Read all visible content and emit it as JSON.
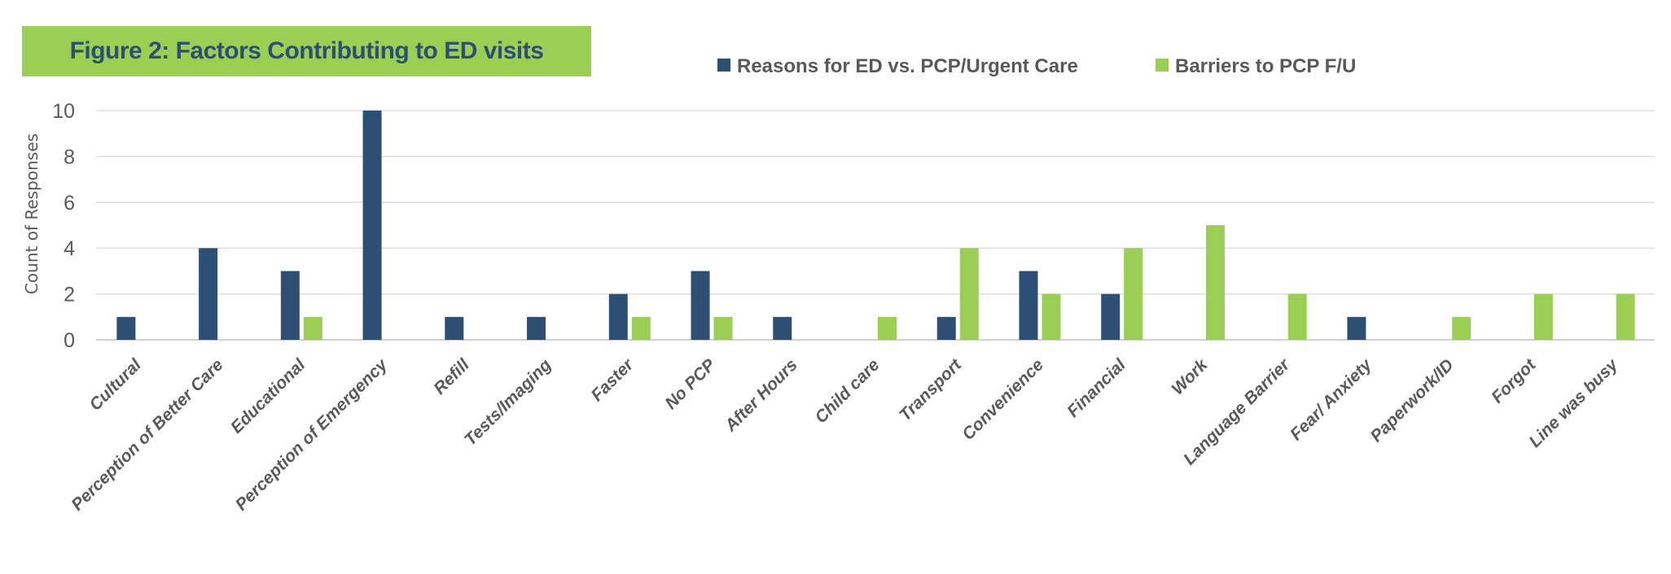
{
  "chart_data": {
    "type": "bar",
    "title": "Figure 2: Factors Contributing to ED visits",
    "xlabel": "",
    "ylabel": "Count of Responses",
    "ylim": [
      0,
      10
    ],
    "yticks": [
      "0",
      "2",
      "4",
      "6",
      "8",
      "10"
    ],
    "grid": true,
    "legend_position": "top",
    "categories": [
      "Cultural",
      "Perception of Better Care",
      "Educational",
      "Perception of Emergency",
      "Refill",
      "Tests/Imaging",
      "Faster",
      "No PCP",
      "After Hours",
      "Child care",
      "Transport",
      "Convenience",
      "Financial",
      "Work",
      "Language Barrier",
      "Fear/ Anxiety",
      "Paperwork/ID",
      "Forgot",
      "Line was busy"
    ],
    "series": [
      {
        "name": "Reasons for ED vs. PCP/Urgent Care",
        "color": "#2E4F74",
        "values": [
          1,
          4,
          3,
          10,
          1,
          1,
          2,
          3,
          1,
          0,
          1,
          3,
          2,
          0,
          0,
          1,
          0,
          0,
          0
        ]
      },
      {
        "name": "Barriers to PCP F/U",
        "color": "#9BCF53",
        "values": [
          0,
          0,
          1,
          0,
          0,
          0,
          1,
          1,
          0,
          1,
          4,
          2,
          4,
          5,
          2,
          0,
          1,
          2,
          2
        ]
      }
    ]
  }
}
